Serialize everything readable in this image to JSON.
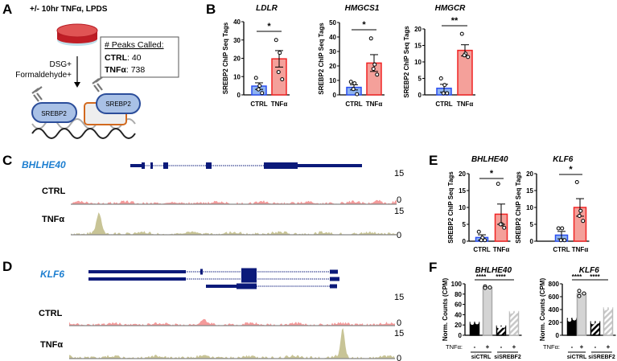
{
  "panel_labels": {
    "a": "A",
    "b": "B",
    "c": "C",
    "d": "D",
    "e": "E",
    "f": "F"
  },
  "panel_a": {
    "title": "+/- 10hr TNFα, LPDS",
    "treatment_line1": "DSG+",
    "treatment_line2": "Formaldehyde+",
    "peaks_header": "# Peaks Called:",
    "ctrl_label": "CTRL",
    "ctrl_value": ": 40",
    "tnf_label": "TNFα",
    "tnf_value": ": 738",
    "protein_left": "SREBP2",
    "protein_right": "SREBP2"
  },
  "panel_c": {
    "gene": "BHLHE40",
    "ctrl_label": "CTRL",
    "tnf_label": "TNFα",
    "max": "15",
    "min": "0"
  },
  "panel_d": {
    "gene": "KLF6",
    "ctrl_label": "CTRL",
    "tnf_label": "TNFα",
    "max": "15",
    "min": "0"
  },
  "colors": {
    "ctrl_fill": "#8fb3f0",
    "ctrl_stroke": "#2a4ef0",
    "tnf_fill": "#f4a09a",
    "tnf_stroke": "#f02424",
    "ctrl_track": "#f49a9a",
    "tnf_track": "#c8c496",
    "gene": "#0b1a7a",
    "gene_label": "#1e7fd0"
  },
  "chart_data": [
    {
      "id": "ldlr",
      "type": "bar",
      "title": "LDLR",
      "ylabel": "SREBP2 ChIP Seq Tags",
      "categories": [
        "CTRL",
        "TNFα"
      ],
      "values": [
        4.8,
        19.7
      ],
      "sem": [
        1.8,
        4.5
      ],
      "points": [
        [
          9.3,
          5,
          3,
          1
        ],
        [
          30,
          23,
          12.5,
          8.5
        ]
      ],
      "ylim": [
        0,
        40
      ],
      "yticks": [
        "0",
        "10",
        "20",
        "30",
        "40"
      ],
      "significance": "*"
    },
    {
      "id": "hmgcs1",
      "type": "bar",
      "title": "HMGCS1",
      "ylabel": "SREBP2 ChIP Seq Tags",
      "categories": [
        "CTRL",
        "TNFα"
      ],
      "values": [
        5.2,
        22
      ],
      "sem": [
        1.8,
        5.8
      ],
      "points": [
        [
          9,
          8,
          4,
          0.5
        ],
        [
          39,
          21,
          18,
          14
        ]
      ],
      "ylim": [
        0,
        50
      ],
      "yticks": [
        "0",
        "10",
        "20",
        "30",
        "40",
        "50"
      ],
      "significance": "*"
    },
    {
      "id": "hmgcr",
      "type": "bar",
      "title": "HMGCR",
      "ylabel": "SREBP2 ChIP Seq Tags",
      "categories": [
        "CTRL",
        "TNFα"
      ],
      "values": [
        2.0,
        13.5
      ],
      "sem": [
        1.2,
        1.7
      ],
      "points": [
        [
          5,
          3,
          0.5,
          0.5
        ],
        [
          18.5,
          12.5,
          12,
          11.5
        ]
      ],
      "ylim": [
        0,
        20
      ],
      "yticks": [
        "0",
        "5",
        "10",
        "15",
        "20"
      ],
      "significance": "**"
    },
    {
      "id": "e_bhlhe40",
      "type": "bar",
      "title": "BHLHE40",
      "ylabel": "SREBP2 ChIP Seq Tags",
      "categories": [
        "CTRL",
        "TNFα"
      ],
      "values": [
        1.1,
        8
      ],
      "sem": [
        0.8,
        3
      ],
      "points": [
        [
          2.8,
          1,
          0.3,
          0.3
        ],
        [
          17,
          5,
          5,
          4
        ]
      ],
      "ylim": [
        0,
        20
      ],
      "yticks": [
        "0",
        "5",
        "10",
        "15",
        "20"
      ],
      "significance": "*"
    },
    {
      "id": "e_klf6",
      "type": "bar",
      "title": "KLF6",
      "ylabel": "SREBP2 ChIP Seq Tags",
      "categories": [
        "CTRL",
        "TNFα"
      ],
      "values": [
        1.8,
        10
      ],
      "sem": [
        1.1,
        2.6
      ],
      "points": [
        [
          3.8,
          3.8,
          0.3,
          0.3
        ],
        [
          17.5,
          9,
          7.5,
          6
        ]
      ],
      "ylim": [
        0,
        20
      ],
      "yticks": [
        "0",
        "5",
        "10",
        "15",
        "20"
      ],
      "significance": "*"
    },
    {
      "id": "f_bhlhe40",
      "type": "bar",
      "title": "BHLHE40",
      "ylabel": "Norm. Counts (CPM)",
      "tnf_row_label": "TNFα:",
      "tnf_signs": [
        "-",
        "+",
        "-",
        "+"
      ],
      "groups": [
        "siCTRL",
        "siSREBF2"
      ],
      "values": [
        25,
        93,
        18,
        46
      ],
      "points": [
        [
          27,
          25,
          24
        ],
        [
          95,
          93,
          92
        ],
        [
          19,
          18,
          17
        ],
        [
          47,
          46,
          46
        ]
      ],
      "ylim": [
        0,
        100
      ],
      "yticks": [
        "0",
        "20",
        "40",
        "60",
        "80",
        "100"
      ],
      "significance": [
        "****",
        "****"
      ]
    },
    {
      "id": "f_klf6",
      "type": "bar",
      "title": "KLF6",
      "ylabel": "Norm. Counts (CPM)",
      "tnf_row_label": "TNFα:",
      "tnf_signs": [
        "-",
        "+",
        "-",
        "+"
      ],
      "groups": [
        "siCTRL",
        "siSREBF2"
      ],
      "values": [
        260,
        650,
        210,
        425
      ],
      "points": [
        [
          280,
          260,
          240
        ],
        [
          690,
          650,
          610
        ],
        [
          225,
          210,
          200
        ],
        [
          440,
          425,
          420
        ]
      ],
      "ylim": [
        0,
        800
      ],
      "yticks": [
        "0",
        "200",
        "400",
        "600",
        "800"
      ],
      "significance": [
        "****",
        "****"
      ]
    }
  ]
}
